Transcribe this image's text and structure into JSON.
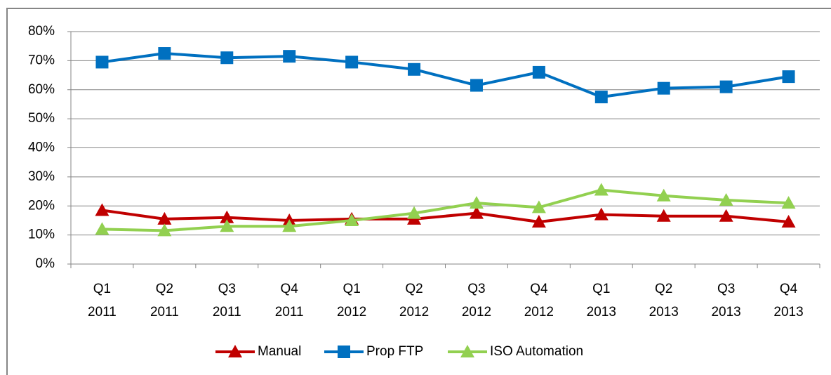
{
  "chart_data": {
    "type": "line",
    "categories": [
      "Q1 2011",
      "Q2 2011",
      "Q3 2011",
      "Q4 2011",
      "Q1 2012",
      "Q2 2012",
      "Q3 2012",
      "Q4 2012",
      "Q1 2013",
      "Q2 2013",
      "Q3 2013",
      "Q4 2013"
    ],
    "series": [
      {
        "name": "Manual",
        "color": "#c00000",
        "marker": "triangle",
        "values": [
          18.5,
          15.5,
          16,
          15,
          15.5,
          15.5,
          17.5,
          14.5,
          17,
          16.5,
          16.5,
          14.5
        ]
      },
      {
        "name": "Prop FTP",
        "color": "#0070c0",
        "marker": "square",
        "values": [
          69.5,
          72.5,
          71,
          71.5,
          69.5,
          67,
          61.5,
          66,
          57.5,
          60.5,
          61,
          64.5
        ]
      },
      {
        "name": "ISO Automation",
        "color": "#92d050",
        "marker": "triangle",
        "values": [
          12,
          11.5,
          13,
          13,
          15,
          17.5,
          21,
          19.5,
          25.5,
          23.5,
          22,
          21
        ]
      }
    ],
    "ylim": [
      0,
      80
    ],
    "yticks": [
      {
        "value": 0,
        "label": "0%"
      },
      {
        "value": 10,
        "label": "10%"
      },
      {
        "value": 20,
        "label": "20%"
      },
      {
        "value": 30,
        "label": "30%"
      },
      {
        "value": 40,
        "label": "40%"
      },
      {
        "value": 50,
        "label": "50%"
      },
      {
        "value": 60,
        "label": "60%"
      },
      {
        "value": 70,
        "label": "70%"
      },
      {
        "value": 80,
        "label": "80%"
      }
    ],
    "grid": true,
    "legend": "bottom"
  }
}
